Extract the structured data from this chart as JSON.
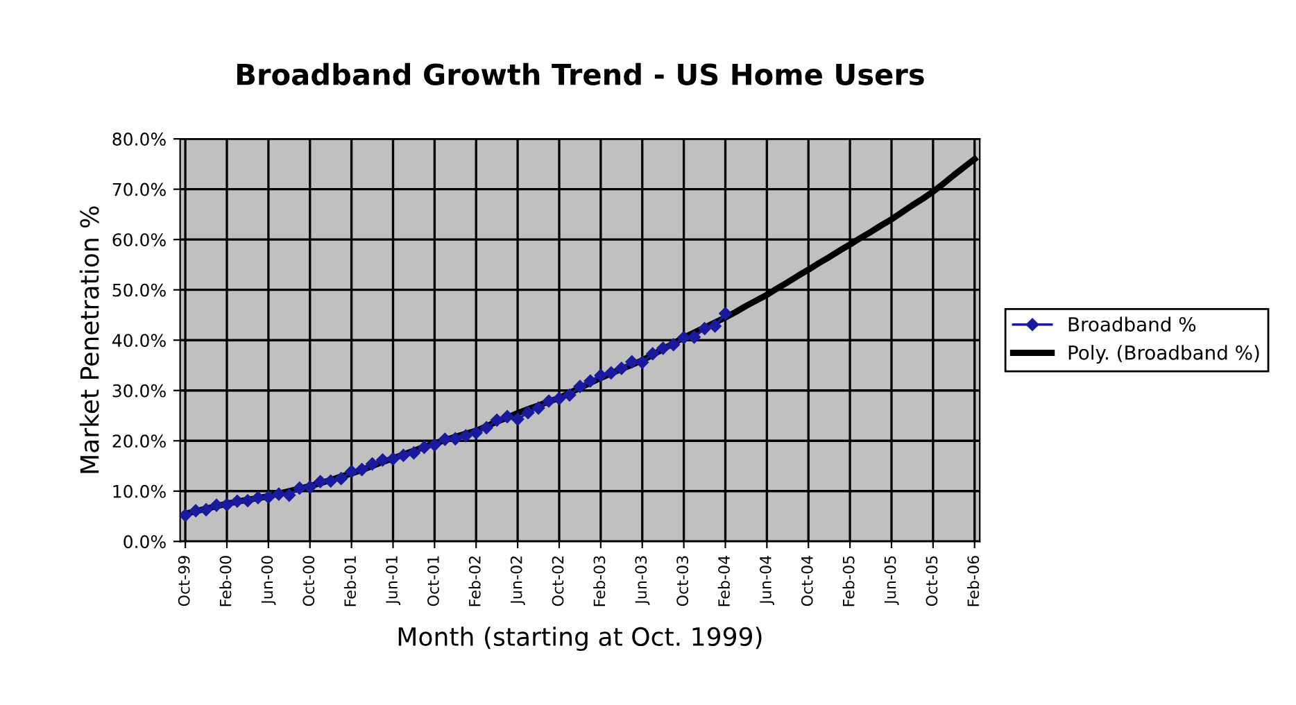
{
  "chart_data": {
    "type": "line",
    "title": "Broadband Growth Trend - US Home Users",
    "xlabel": "Month (starting at Oct. 1999)",
    "ylabel": "Market Penetration %",
    "categories": [
      "Oct-99",
      null,
      null,
      null,
      "Feb-00",
      null,
      null,
      null,
      "Jun-00",
      null,
      null,
      null,
      "Oct-00",
      null,
      null,
      null,
      "Feb-01",
      null,
      null,
      null,
      "Jun-01",
      null,
      null,
      null,
      "Oct-01",
      null,
      null,
      null,
      "Feb-02",
      null,
      null,
      null,
      "Jun-02",
      null,
      null,
      null,
      "Oct-02",
      null,
      null,
      null,
      "Feb-03",
      null,
      null,
      null,
      "Jun-03",
      null,
      null,
      null,
      "Oct-03",
      null,
      null,
      null,
      "Feb-04",
      null,
      null,
      null,
      "Jun-04",
      null,
      null,
      null,
      "Oct-04",
      null,
      null,
      null,
      "Feb-05",
      null,
      null,
      null,
      "Jun-05",
      null,
      null,
      null,
      "Oct-05",
      null,
      null,
      null,
      "Feb-06"
    ],
    "series": [
      {
        "name": "Broadband %",
        "color": "#1a1a9e",
        "marker": "diamond",
        "values": [
          5.2,
          6.1,
          6.3,
          7.2,
          7.3,
          8.0,
          8.1,
          8.7,
          8.8,
          9.4,
          9.2,
          10.6,
          10.8,
          11.9,
          12.0,
          12.5,
          13.9,
          14.3,
          15.4,
          16.2,
          16.4,
          17.1,
          17.6,
          18.7,
          19.2,
          20.3,
          20.4,
          21.0,
          21.6,
          22.6,
          24.1,
          24.8,
          24.3,
          25.6,
          26.5,
          27.9,
          28.4,
          29.1,
          30.8,
          31.9,
          33.0,
          33.5,
          34.4,
          35.7,
          35.6,
          37.3,
          38.4,
          39.1,
          40.5,
          40.6,
          42.3,
          42.8,
          45.3,
          null,
          null,
          null,
          null,
          null,
          null,
          null,
          null,
          null,
          null,
          null,
          null,
          null,
          null,
          null,
          null,
          null,
          null,
          null,
          null,
          null,
          null,
          null,
          null
        ]
      },
      {
        "name": "Poly. (Broadband %)",
        "color": "#000000",
        "marker": "none",
        "values": [
          5.5,
          6.0,
          6.5,
          7.0,
          7.5,
          7.9,
          8.3,
          8.6,
          9.0,
          9.5,
          10.0,
          10.5,
          11.0,
          11.6,
          12.2,
          12.9,
          13.5,
          14.2,
          15.0,
          15.8,
          16.5,
          17.3,
          18.0,
          18.8,
          19.5,
          20.1,
          20.8,
          21.4,
          22.0,
          22.9,
          23.8,
          24.6,
          25.5,
          26.3,
          27.0,
          27.8,
          28.5,
          29.5,
          30.5,
          31.5,
          32.5,
          33.4,
          34.3,
          35.1,
          36.0,
          37.1,
          38.2,
          39.4,
          40.5,
          41.5,
          42.5,
          43.5,
          44.5,
          45.6,
          46.8,
          47.9,
          49.0,
          50.3,
          51.5,
          52.8,
          54.0,
          55.3,
          56.5,
          57.8,
          59.0,
          60.3,
          61.5,
          62.8,
          64.0,
          65.4,
          66.8,
          68.1,
          69.5,
          71.1,
          72.8,
          74.4,
          76.0
        ]
      }
    ],
    "ylim": [
      0,
      80
    ],
    "yticks": [
      {
        "value": 0,
        "label": "0.0%"
      },
      {
        "value": 10,
        "label": "10.0%"
      },
      {
        "value": 20,
        "label": "20.0%"
      },
      {
        "value": 30,
        "label": "30.0%"
      },
      {
        "value": 40,
        "label": "40.0%"
      },
      {
        "value": 50,
        "label": "50.0%"
      },
      {
        "value": 60,
        "label": "60.0%"
      },
      {
        "value": 70,
        "label": "70.0%"
      },
      {
        "value": 80,
        "label": "80.0%"
      }
    ],
    "grid": true,
    "legend": "right",
    "line_style": "solid"
  }
}
